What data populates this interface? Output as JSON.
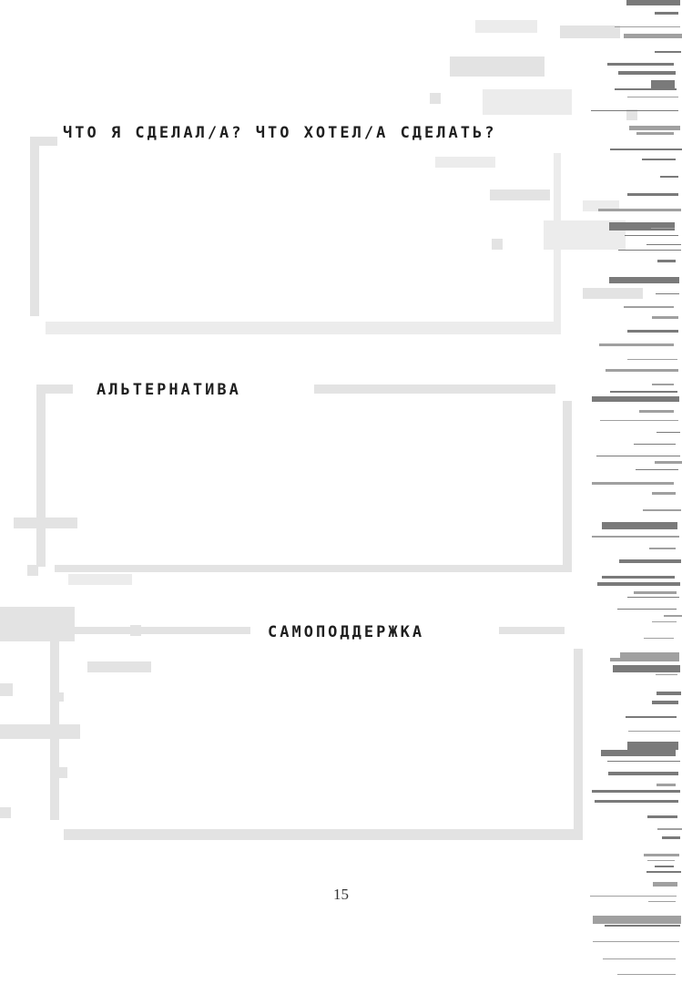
{
  "sections": [
    {
      "title": "ЧТО Я СДЕЛАЛ/А? ЧТО ХОТЕЛ/А СДЕЛАТЬ?"
    },
    {
      "title": "АЛЬТЕРНАТИВА"
    },
    {
      "title": "САМОПОДДЕРЖКА"
    }
  ],
  "page_number": "15",
  "colors": {
    "frame": "#e3e3e3",
    "glitch": "#8a8a8a",
    "text": "#1f1f1f"
  }
}
